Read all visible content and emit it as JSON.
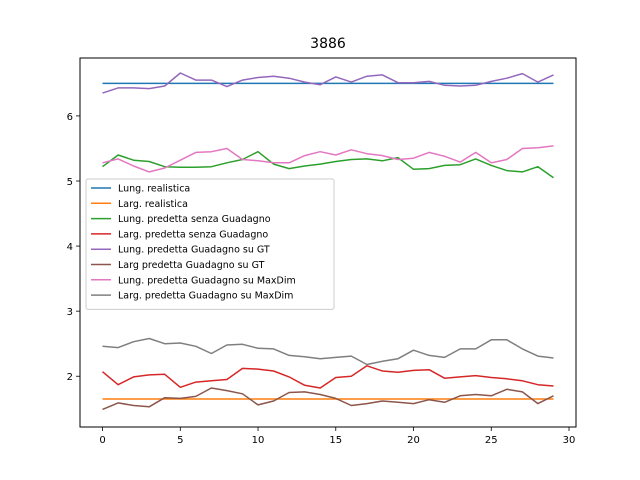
{
  "chart_data": {
    "type": "line",
    "title": "3886",
    "xlabel": "",
    "ylabel": "",
    "xlim": [
      -1.45,
      30.45
    ],
    "ylim": [
      1.22,
      6.89
    ],
    "xticks": [
      0,
      5,
      10,
      15,
      20,
      25,
      30
    ],
    "yticks": [
      2,
      3,
      4,
      5,
      6
    ],
    "grid": false,
    "legend_position": "center-left",
    "x": [
      0,
      1,
      2,
      3,
      4,
      5,
      6,
      7,
      8,
      9,
      10,
      11,
      12,
      13,
      14,
      15,
      16,
      17,
      18,
      19,
      20,
      21,
      22,
      23,
      24,
      25,
      26,
      27,
      28,
      29
    ],
    "series": [
      {
        "name": "Lung. realistica",
        "color": "#1f77b4",
        "values": [
          6.5,
          6.5,
          6.5,
          6.5,
          6.5,
          6.5,
          6.5,
          6.5,
          6.5,
          6.5,
          6.5,
          6.5,
          6.5,
          6.5,
          6.5,
          6.5,
          6.5,
          6.5,
          6.5,
          6.5,
          6.5,
          6.5,
          6.5,
          6.5,
          6.5,
          6.5,
          6.5,
          6.5,
          6.5,
          6.5
        ]
      },
      {
        "name": "Larg. realistica",
        "color": "#ff7f0e",
        "values": [
          1.65,
          1.65,
          1.65,
          1.65,
          1.65,
          1.65,
          1.65,
          1.65,
          1.65,
          1.65,
          1.65,
          1.65,
          1.65,
          1.65,
          1.65,
          1.65,
          1.65,
          1.65,
          1.65,
          1.65,
          1.65,
          1.65,
          1.65,
          1.65,
          1.65,
          1.65,
          1.65,
          1.65,
          1.65,
          1.65
        ]
      },
      {
        "name": "Lung. predetta senza Guadagno",
        "color": "#2ca02c",
        "values": [
          5.22,
          5.4,
          5.32,
          5.3,
          5.22,
          5.21,
          5.21,
          5.22,
          5.28,
          5.33,
          5.45,
          5.26,
          5.19,
          5.23,
          5.26,
          5.3,
          5.33,
          5.34,
          5.31,
          5.36,
          5.18,
          5.19,
          5.24,
          5.25,
          5.34,
          5.24,
          5.16,
          5.14,
          5.22,
          5.05
        ]
      },
      {
        "name": "Larg. predetta senza Guadagno",
        "color": "#d62728",
        "values": [
          2.07,
          1.87,
          1.99,
          2.02,
          2.03,
          1.83,
          1.91,
          1.93,
          1.95,
          2.12,
          2.11,
          2.08,
          1.99,
          1.86,
          1.82,
          1.98,
          2.0,
          2.16,
          2.08,
          2.06,
          2.09,
          2.1,
          1.97,
          1.99,
          2.01,
          1.98,
          1.96,
          1.93,
          1.87,
          1.85
        ]
      },
      {
        "name": "Lung. predetta Guadagno su GT",
        "color": "#9467bd",
        "values": [
          6.35,
          6.43,
          6.43,
          6.42,
          6.46,
          6.66,
          6.55,
          6.55,
          6.45,
          6.55,
          6.59,
          6.61,
          6.58,
          6.52,
          6.48,
          6.6,
          6.52,
          6.61,
          6.63,
          6.51,
          6.51,
          6.53,
          6.47,
          6.46,
          6.47,
          6.53,
          6.58,
          6.65,
          6.52,
          6.63
        ]
      },
      {
        "name": "Larg predetta Guadagno su GT",
        "color": "#8c564b",
        "values": [
          1.49,
          1.59,
          1.55,
          1.53,
          1.67,
          1.66,
          1.69,
          1.82,
          1.78,
          1.73,
          1.56,
          1.62,
          1.75,
          1.76,
          1.72,
          1.66,
          1.55,
          1.58,
          1.62,
          1.6,
          1.58,
          1.64,
          1.6,
          1.7,
          1.72,
          1.7,
          1.8,
          1.76,
          1.58,
          1.7
        ]
      },
      {
        "name": "Lung. predetta Guadagno su MaxDim",
        "color": "#e377c2",
        "values": [
          5.28,
          5.34,
          5.23,
          5.14,
          5.2,
          5.32,
          5.44,
          5.45,
          5.5,
          5.33,
          5.31,
          5.28,
          5.28,
          5.39,
          5.45,
          5.4,
          5.48,
          5.42,
          5.39,
          5.33,
          5.35,
          5.44,
          5.38,
          5.29,
          5.44,
          5.28,
          5.33,
          5.5,
          5.51,
          5.54
        ]
      },
      {
        "name": "Larg. predetta Guadagno su MaxDim",
        "color": "#7f7f7f",
        "values": [
          2.46,
          2.44,
          2.53,
          2.58,
          2.5,
          2.51,
          2.46,
          2.35,
          2.48,
          2.49,
          2.43,
          2.42,
          2.32,
          2.3,
          2.27,
          2.29,
          2.31,
          2.18,
          2.23,
          2.27,
          2.4,
          2.32,
          2.29,
          2.42,
          2.42,
          2.56,
          2.56,
          2.42,
          2.31,
          2.28
        ]
      }
    ]
  }
}
